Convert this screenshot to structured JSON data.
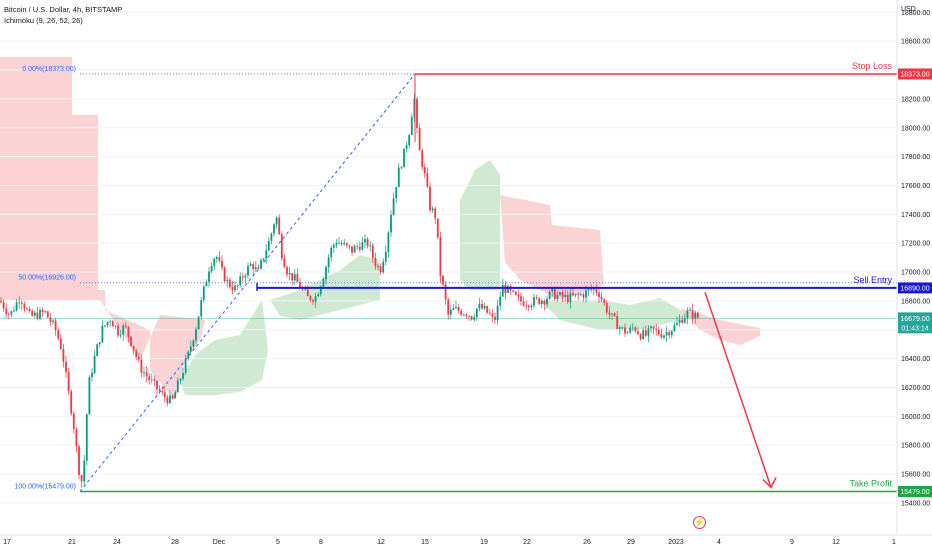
{
  "header": {
    "symbol_line": "Bitcoin / U.S. Dollar, 4h, BITSTAMP",
    "indicator_line": "Ichimoku (9, 26, 52, 26)",
    "currency": "USD"
  },
  "chart_data": {
    "type": "candlestick",
    "y_axis": {
      "currency": "USD",
      "range": [
        15330,
        18830
      ],
      "ticks": [
        "18800.00",
        "18600.00",
        "18400.00",
        "18200.00",
        "18000.00",
        "17800.00",
        "17600.00",
        "17400.00",
        "17200.00",
        "17000.00",
        "16800.00",
        "16600.00",
        "16400.00",
        "16200.00",
        "16000.00",
        "15800.00",
        "15600.00",
        "15400.00"
      ]
    },
    "x_axis": {
      "ticks": [
        "17",
        "21",
        "24",
        "28",
        "Dec",
        "5",
        "8",
        "12",
        "15",
        "19",
        "22",
        "26",
        "29",
        "2023",
        "4",
        "9",
        "12",
        "1"
      ]
    },
    "levels": [
      {
        "name": "stop_loss",
        "label": "Stop Loss",
        "value": 18373,
        "value_label": "18373.00",
        "color": "#f23645"
      },
      {
        "name": "sell_entry",
        "label": "Sell Entry",
        "value": 16890,
        "value_label": "16890.00",
        "color": "#1a18d6"
      },
      {
        "name": "take_profit",
        "label": "Take Profit",
        "value": 15479,
        "value_label": "15479.00",
        "color": "#22a641"
      },
      {
        "name": "last_price",
        "label": "",
        "value": 16679,
        "value_label": "16679.00",
        "countdown": "01:43:14",
        "color": "#26a69a"
      }
    ],
    "fibonacci": [
      {
        "label": "0.00%(18373.00)",
        "value": 18373
      },
      {
        "label": "50.00%(16926.00)",
        "value": 16926
      },
      {
        "label": "100.00%(15479.00)",
        "value": 15479
      }
    ],
    "series_path": [
      [
        0,
        16800
      ],
      [
        10,
        16700
      ],
      [
        20,
        16830
      ],
      [
        30,
        16690
      ],
      [
        45,
        16720
      ],
      [
        55,
        16610
      ],
      [
        62,
        16460
      ],
      [
        68,
        16180
      ],
      [
        73,
        15980
      ],
      [
        78,
        15680
      ],
      [
        81,
        15520
      ],
      [
        85,
        15740
      ],
      [
        88,
        16200
      ],
      [
        95,
        16420
      ],
      [
        102,
        16600
      ],
      [
        110,
        16680
      ],
      [
        118,
        16590
      ],
      [
        125,
        16620
      ],
      [
        132,
        16500
      ],
      [
        140,
        16340
      ],
      [
        150,
        16250
      ],
      [
        162,
        16150
      ],
      [
        172,
        16100
      ],
      [
        180,
        16260
      ],
      [
        188,
        16420
      ],
      [
        196,
        16620
      ],
      [
        204,
        16880
      ],
      [
        210,
        17060
      ],
      [
        216,
        17120
      ],
      [
        222,
        17000
      ],
      [
        228,
        16920
      ],
      [
        236,
        16880
      ],
      [
        244,
        16990
      ],
      [
        252,
        17060
      ],
      [
        258,
        16990
      ],
      [
        264,
        17120
      ],
      [
        270,
        17230
      ],
      [
        276,
        17400
      ],
      [
        282,
        17120
      ],
      [
        288,
        16990
      ],
      [
        295,
        16950
      ],
      [
        302,
        16880
      ],
      [
        308,
        16820
      ],
      [
        316,
        16830
      ],
      [
        324,
        16990
      ],
      [
        330,
        17140
      ],
      [
        336,
        17220
      ],
      [
        344,
        17180
      ],
      [
        352,
        17150
      ],
      [
        360,
        17190
      ],
      [
        368,
        17200
      ],
      [
        374,
        17080
      ],
      [
        380,
        17010
      ],
      [
        386,
        17180
      ],
      [
        392,
        17460
      ],
      [
        398,
        17680
      ],
      [
        404,
        17820
      ],
      [
        410,
        18000
      ],
      [
        414,
        18230
      ],
      [
        418,
        17880
      ],
      [
        424,
        17700
      ],
      [
        430,
        17450
      ],
      [
        436,
        17380
      ],
      [
        440,
        17000
      ],
      [
        444,
        16860
      ],
      [
        448,
        16700
      ],
      [
        454,
        16740
      ],
      [
        460,
        16730
      ],
      [
        466,
        16720
      ],
      [
        472,
        16690
      ],
      [
        478,
        16760
      ],
      [
        484,
        16740
      ],
      [
        490,
        16700
      ],
      [
        494,
        16650
      ],
      [
        498,
        16760
      ],
      [
        502,
        16900
      ],
      [
        508,
        16870
      ],
      [
        514,
        16830
      ],
      [
        520,
        16800
      ],
      [
        528,
        16790
      ],
      [
        536,
        16800
      ],
      [
        544,
        16810
      ],
      [
        552,
        16850
      ],
      [
        560,
        16830
      ],
      [
        568,
        16820
      ],
      [
        576,
        16830
      ],
      [
        584,
        16850
      ],
      [
        592,
        16880
      ],
      [
        598,
        16870
      ],
      [
        604,
        16780
      ],
      [
        610,
        16700
      ],
      [
        616,
        16650
      ],
      [
        622,
        16600
      ],
      [
        628,
        16580
      ],
      [
        634,
        16620
      ],
      [
        640,
        16570
      ],
      [
        646,
        16560
      ],
      [
        652,
        16600
      ],
      [
        658,
        16580
      ],
      [
        664,
        16570
      ],
      [
        670,
        16600
      ],
      [
        676,
        16630
      ],
      [
        682,
        16680
      ],
      [
        688,
        16720
      ],
      [
        694,
        16700
      ],
      [
        700,
        16680
      ]
    ],
    "forecast_arrow": {
      "from": 16860,
      "to": 15479,
      "color": "#f23645"
    },
    "ichimoku_cloud_colors": {
      "bearish": "#fccbcd",
      "bullish": "#c8e6c9"
    }
  }
}
